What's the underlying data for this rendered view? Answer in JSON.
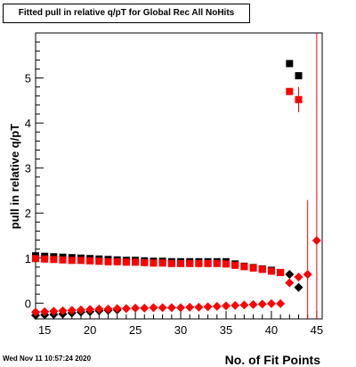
{
  "title": "Fitted pull in relative q/pT for Global Rec All NoHits",
  "footer": "Wed Nov 11 10:57:24 2020",
  "chart_data": {
    "type": "scatter",
    "title": "Fitted pull in relative q/pT for Global Rec All NoHits",
    "xlabel": "No. of Fit Points",
    "ylabel": "pull in relative q/pT",
    "xlim": [
      14,
      45.6
    ],
    "ylim": [
      -0.35,
      6.0
    ],
    "x_ticks": [
      15,
      20,
      25,
      30,
      35,
      40,
      45
    ],
    "y_ticks": [
      0,
      1,
      2,
      3,
      4,
      5
    ],
    "grid": false,
    "legend": "none",
    "series": [
      {
        "color": "#000000",
        "marker": "square",
        "points": [
          {
            "x": 14,
            "y": 1.05
          },
          {
            "x": 15,
            "y": 1.04
          },
          {
            "x": 16,
            "y": 1.03
          },
          {
            "x": 17,
            "y": 1.02
          },
          {
            "x": 18,
            "y": 1.01
          },
          {
            "x": 19,
            "y": 1.0
          },
          {
            "x": 20,
            "y": 0.99
          },
          {
            "x": 21,
            "y": 0.98
          },
          {
            "x": 22,
            "y": 0.97
          },
          {
            "x": 23,
            "y": 0.96
          },
          {
            "x": 24,
            "y": 0.95
          },
          {
            "x": 25,
            "y": 0.95
          },
          {
            "x": 26,
            "y": 0.94
          },
          {
            "x": 27,
            "y": 0.93
          },
          {
            "x": 28,
            "y": 0.93
          },
          {
            "x": 29,
            "y": 0.92
          },
          {
            "x": 30,
            "y": 0.92
          },
          {
            "x": 31,
            "y": 0.92
          },
          {
            "x": 32,
            "y": 0.92
          },
          {
            "x": 33,
            "y": 0.92
          },
          {
            "x": 34,
            "y": 0.92
          },
          {
            "x": 35,
            "y": 0.92
          },
          {
            "x": 36,
            "y": 0.87
          },
          {
            "x": 37,
            "y": 0.82
          },
          {
            "x": 38,
            "y": 0.79
          },
          {
            "x": 39,
            "y": 0.76
          },
          {
            "x": 40,
            "y": 0.73
          },
          {
            "x": 41,
            "y": 0.68
          },
          {
            "x": 42,
            "y": 5.32
          },
          {
            "x": 43,
            "y": 5.05
          }
        ]
      },
      {
        "color": "#ff0000",
        "marker": "square",
        "points": [
          {
            "x": 14,
            "y": 0.99
          },
          {
            "x": 15,
            "y": 0.98
          },
          {
            "x": 16,
            "y": 0.97
          },
          {
            "x": 17,
            "y": 0.96
          },
          {
            "x": 18,
            "y": 0.95
          },
          {
            "x": 19,
            "y": 0.95
          },
          {
            "x": 20,
            "y": 0.94
          },
          {
            "x": 21,
            "y": 0.93
          },
          {
            "x": 22,
            "y": 0.92
          },
          {
            "x": 23,
            "y": 0.92
          },
          {
            "x": 24,
            "y": 0.91
          },
          {
            "x": 25,
            "y": 0.91
          },
          {
            "x": 26,
            "y": 0.9
          },
          {
            "x": 27,
            "y": 0.89
          },
          {
            "x": 28,
            "y": 0.89
          },
          {
            "x": 29,
            "y": 0.88
          },
          {
            "x": 30,
            "y": 0.88
          },
          {
            "x": 31,
            "y": 0.88
          },
          {
            "x": 32,
            "y": 0.88
          },
          {
            "x": 33,
            "y": 0.88
          },
          {
            "x": 34,
            "y": 0.88
          },
          {
            "x": 35,
            "y": 0.87
          },
          {
            "x": 36,
            "y": 0.84
          },
          {
            "x": 37,
            "y": 0.81
          },
          {
            "x": 38,
            "y": 0.78
          },
          {
            "x": 39,
            "y": 0.75
          },
          {
            "x": 40,
            "y": 0.71
          },
          {
            "x": 41,
            "y": 0.68
          },
          {
            "x": 42,
            "y": 4.7
          },
          {
            "x": 43,
            "y": 4.52,
            "yerr": 0.28
          }
        ]
      },
      {
        "color": "#000000",
        "marker": "diamond",
        "points": [
          {
            "x": 14,
            "y": -0.27
          },
          {
            "x": 15,
            "y": -0.26
          },
          {
            "x": 16,
            "y": -0.25
          },
          {
            "x": 17,
            "y": -0.24
          },
          {
            "x": 18,
            "y": -0.22
          },
          {
            "x": 19,
            "y": -0.2
          },
          {
            "x": 20,
            "y": -0.19
          },
          {
            "x": 21,
            "y": -0.17
          },
          {
            "x": 22,
            "y": -0.16
          },
          {
            "x": 23,
            "y": -0.15
          },
          {
            "x": 42,
            "y": 0.64
          },
          {
            "x": 43,
            "y": 0.35
          }
        ]
      },
      {
        "color": "#ff0000",
        "marker": "diamond",
        "points": [
          {
            "x": 14,
            "y": -0.2
          },
          {
            "x": 15,
            "y": -0.19
          },
          {
            "x": 16,
            "y": -0.18
          },
          {
            "x": 17,
            "y": -0.17
          },
          {
            "x": 18,
            "y": -0.16
          },
          {
            "x": 19,
            "y": -0.15
          },
          {
            "x": 20,
            "y": -0.14
          },
          {
            "x": 21,
            "y": -0.13
          },
          {
            "x": 22,
            "y": -0.13
          },
          {
            "x": 23,
            "y": -0.12
          },
          {
            "x": 24,
            "y": -0.12
          },
          {
            "x": 25,
            "y": -0.11
          },
          {
            "x": 26,
            "y": -0.11
          },
          {
            "x": 27,
            "y": -0.1
          },
          {
            "x": 28,
            "y": -0.1
          },
          {
            "x": 29,
            "y": -0.1
          },
          {
            "x": 30,
            "y": -0.1
          },
          {
            "x": 31,
            "y": -0.09
          },
          {
            "x": 32,
            "y": -0.09
          },
          {
            "x": 33,
            "y": -0.08
          },
          {
            "x": 34,
            "y": -0.07
          },
          {
            "x": 35,
            "y": -0.06
          },
          {
            "x": 36,
            "y": -0.05
          },
          {
            "x": 37,
            "y": -0.04
          },
          {
            "x": 38,
            "y": -0.03
          },
          {
            "x": 39,
            "y": -0.02
          },
          {
            "x": 40,
            "y": -0.01
          },
          {
            "x": 41,
            "y": -0.01
          },
          {
            "x": 42,
            "y": 0.45
          },
          {
            "x": 43,
            "y": 0.58
          },
          {
            "x": 44,
            "y": 0.64,
            "yerr": 1.65
          },
          {
            "x": 45,
            "y": 1.39,
            "yerr": 4.6
          }
        ]
      }
    ]
  }
}
